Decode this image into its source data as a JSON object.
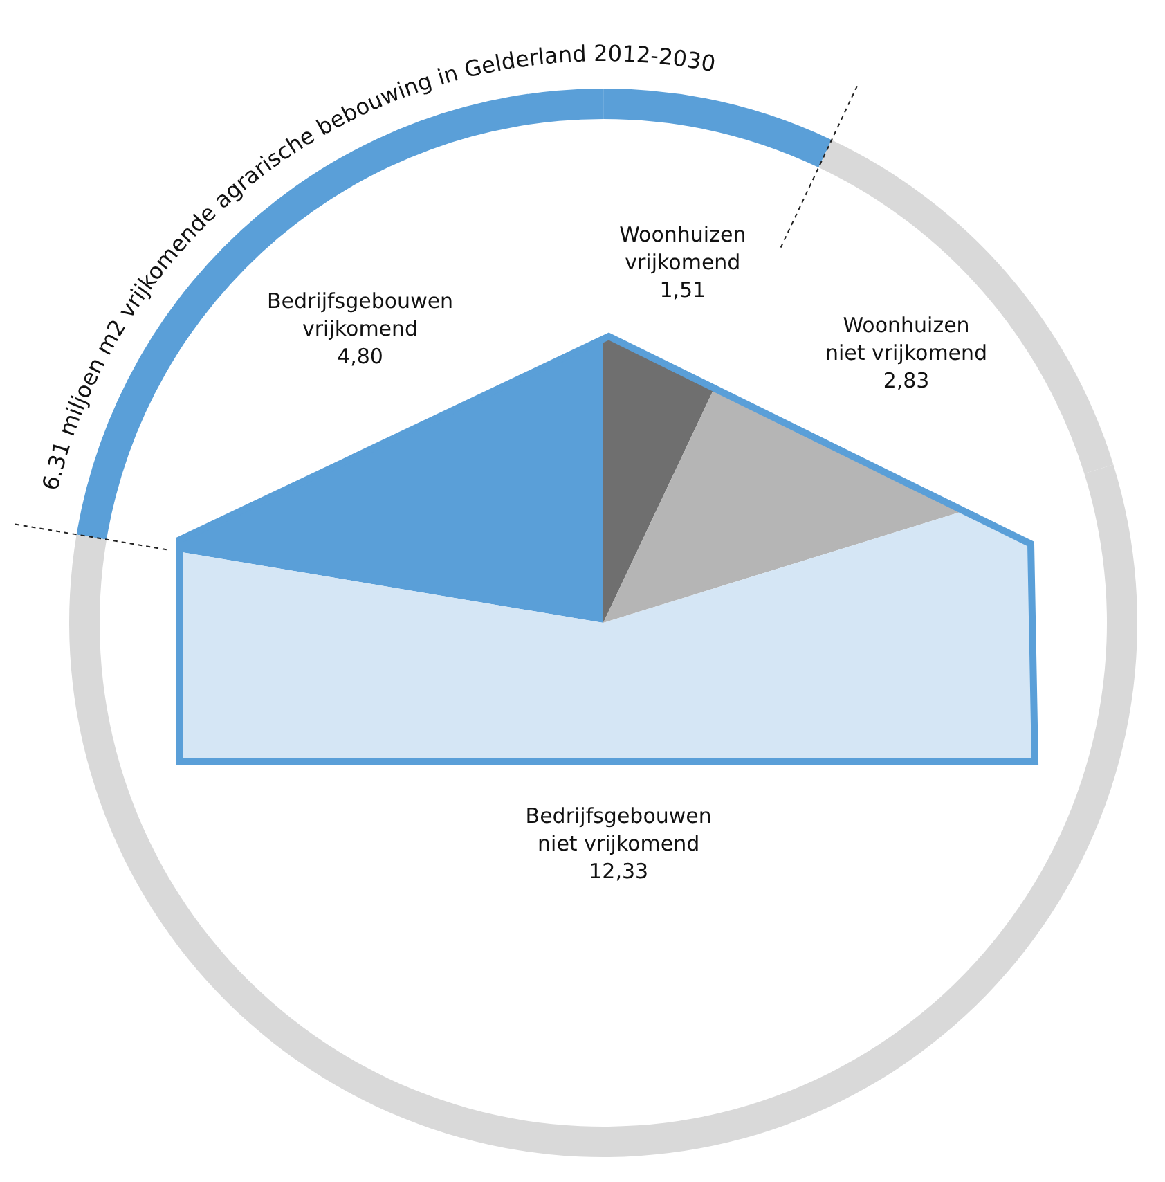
{
  "chart_data": {
    "type": "pie",
    "title": "6.31 miljoen m2 vrijkomende agrarische bebouwing in Gelderland 2012-2030",
    "categories": [
      "Bedrijfsgebouwen vrijkomend",
      "Woonhuizen vrijkomend",
      "Woonhuizen niet vrijkomend",
      "Bedrijfsgebouwen niet vrijkomend"
    ],
    "series": [
      {
        "type": "donut",
        "values": [
          22.36,
          7.03,
          13.18,
          57.43
        ],
        "colors": [
          "#5a9fd8",
          "#5a9fd8",
          "#d9d9d9",
          "#d9d9d9"
        ]
      },
      {
        "values": [
          4.8,
          1.51,
          2.83,
          12.33
        ],
        "value_labels": [
          "4,80",
          "1,51",
          "2,83",
          "12,33"
        ],
        "colors": [
          "#5a9fd8",
          "#6f6f6f",
          "#b5b5b5",
          "#d5e6f5"
        ]
      }
    ]
  }
}
